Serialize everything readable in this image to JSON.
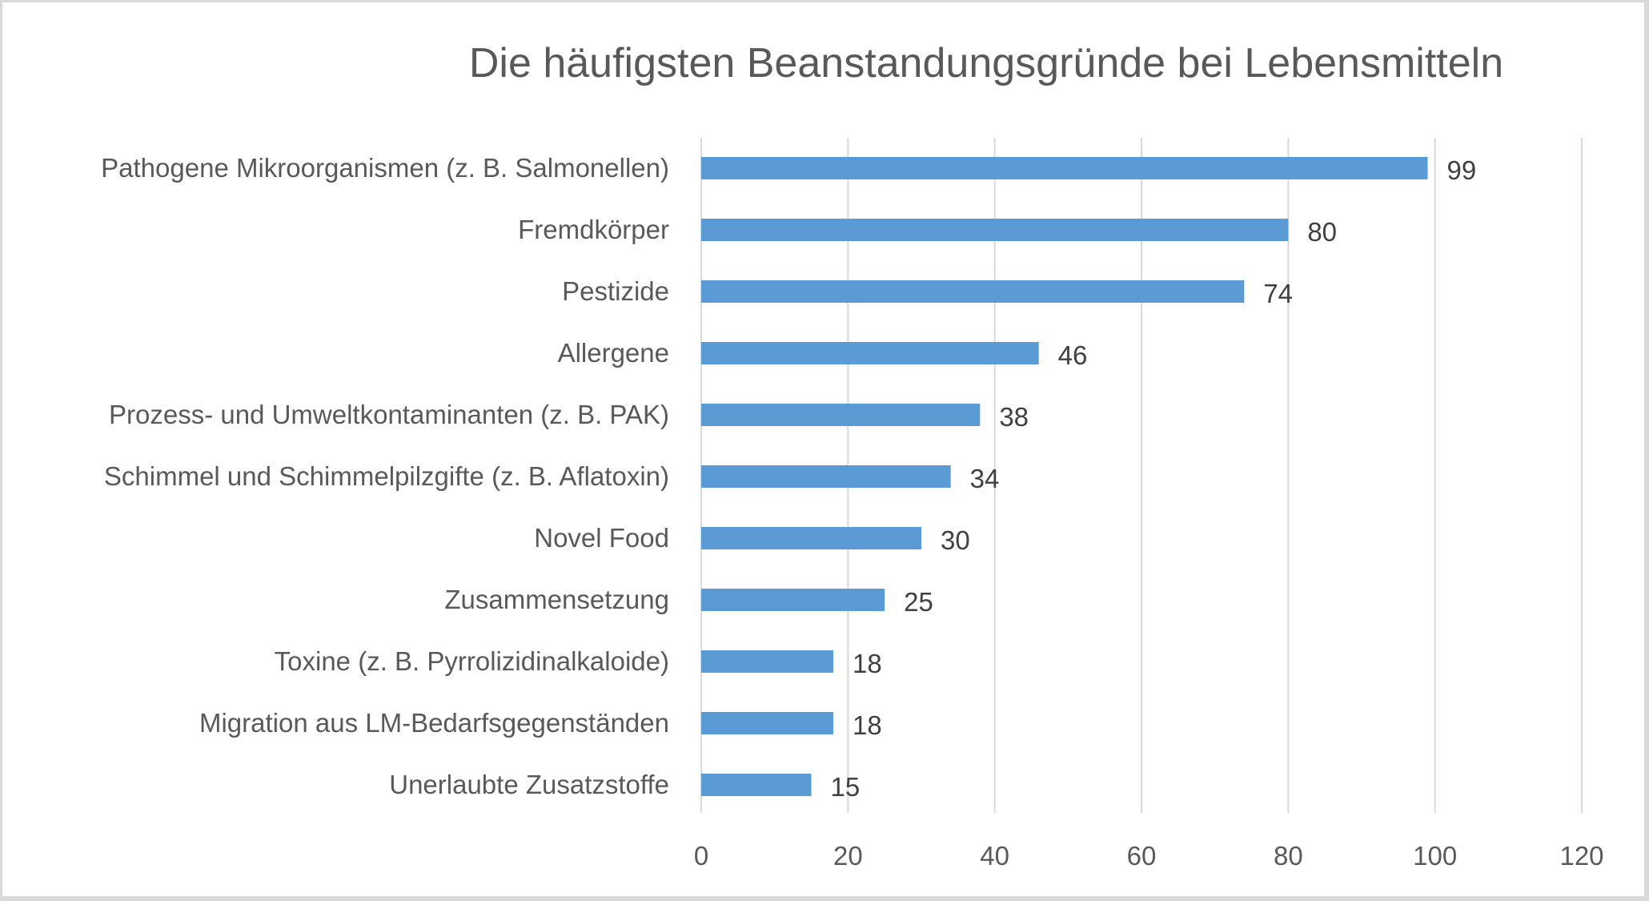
{
  "chart_data": {
    "type": "bar",
    "orientation": "horizontal",
    "title": "Die häufigsten Beanstandungsgründe bei Lebensmitteln",
    "xlabel": "",
    "ylabel": "",
    "categories": [
      "Pathogene Mikroorganismen (z. B. Salmonellen)",
      "Fremdkörper",
      "Pestizide",
      "Allergene",
      "Prozess- und Umweltkontaminanten (z. B. PAK)",
      "Schimmel und Schimmelpilzgifte (z. B. Aflatoxin)",
      "Novel Food",
      "Zusammensetzung",
      "Toxine (z. B. Pyrrolizidinalkaloide)",
      "Migration aus LM-Bedarfsgegenständen",
      "Unerlaubte Zusatzstoffe"
    ],
    "values": [
      99,
      80,
      74,
      46,
      38,
      34,
      30,
      25,
      18,
      18,
      15
    ],
    "xlim": [
      0,
      120
    ],
    "xticks": [
      "0",
      "20",
      "40",
      "60",
      "80",
      "100",
      "120"
    ],
    "grid": true,
    "data_labels": true,
    "bar_color": "#5b9bd5",
    "legend": "none"
  }
}
